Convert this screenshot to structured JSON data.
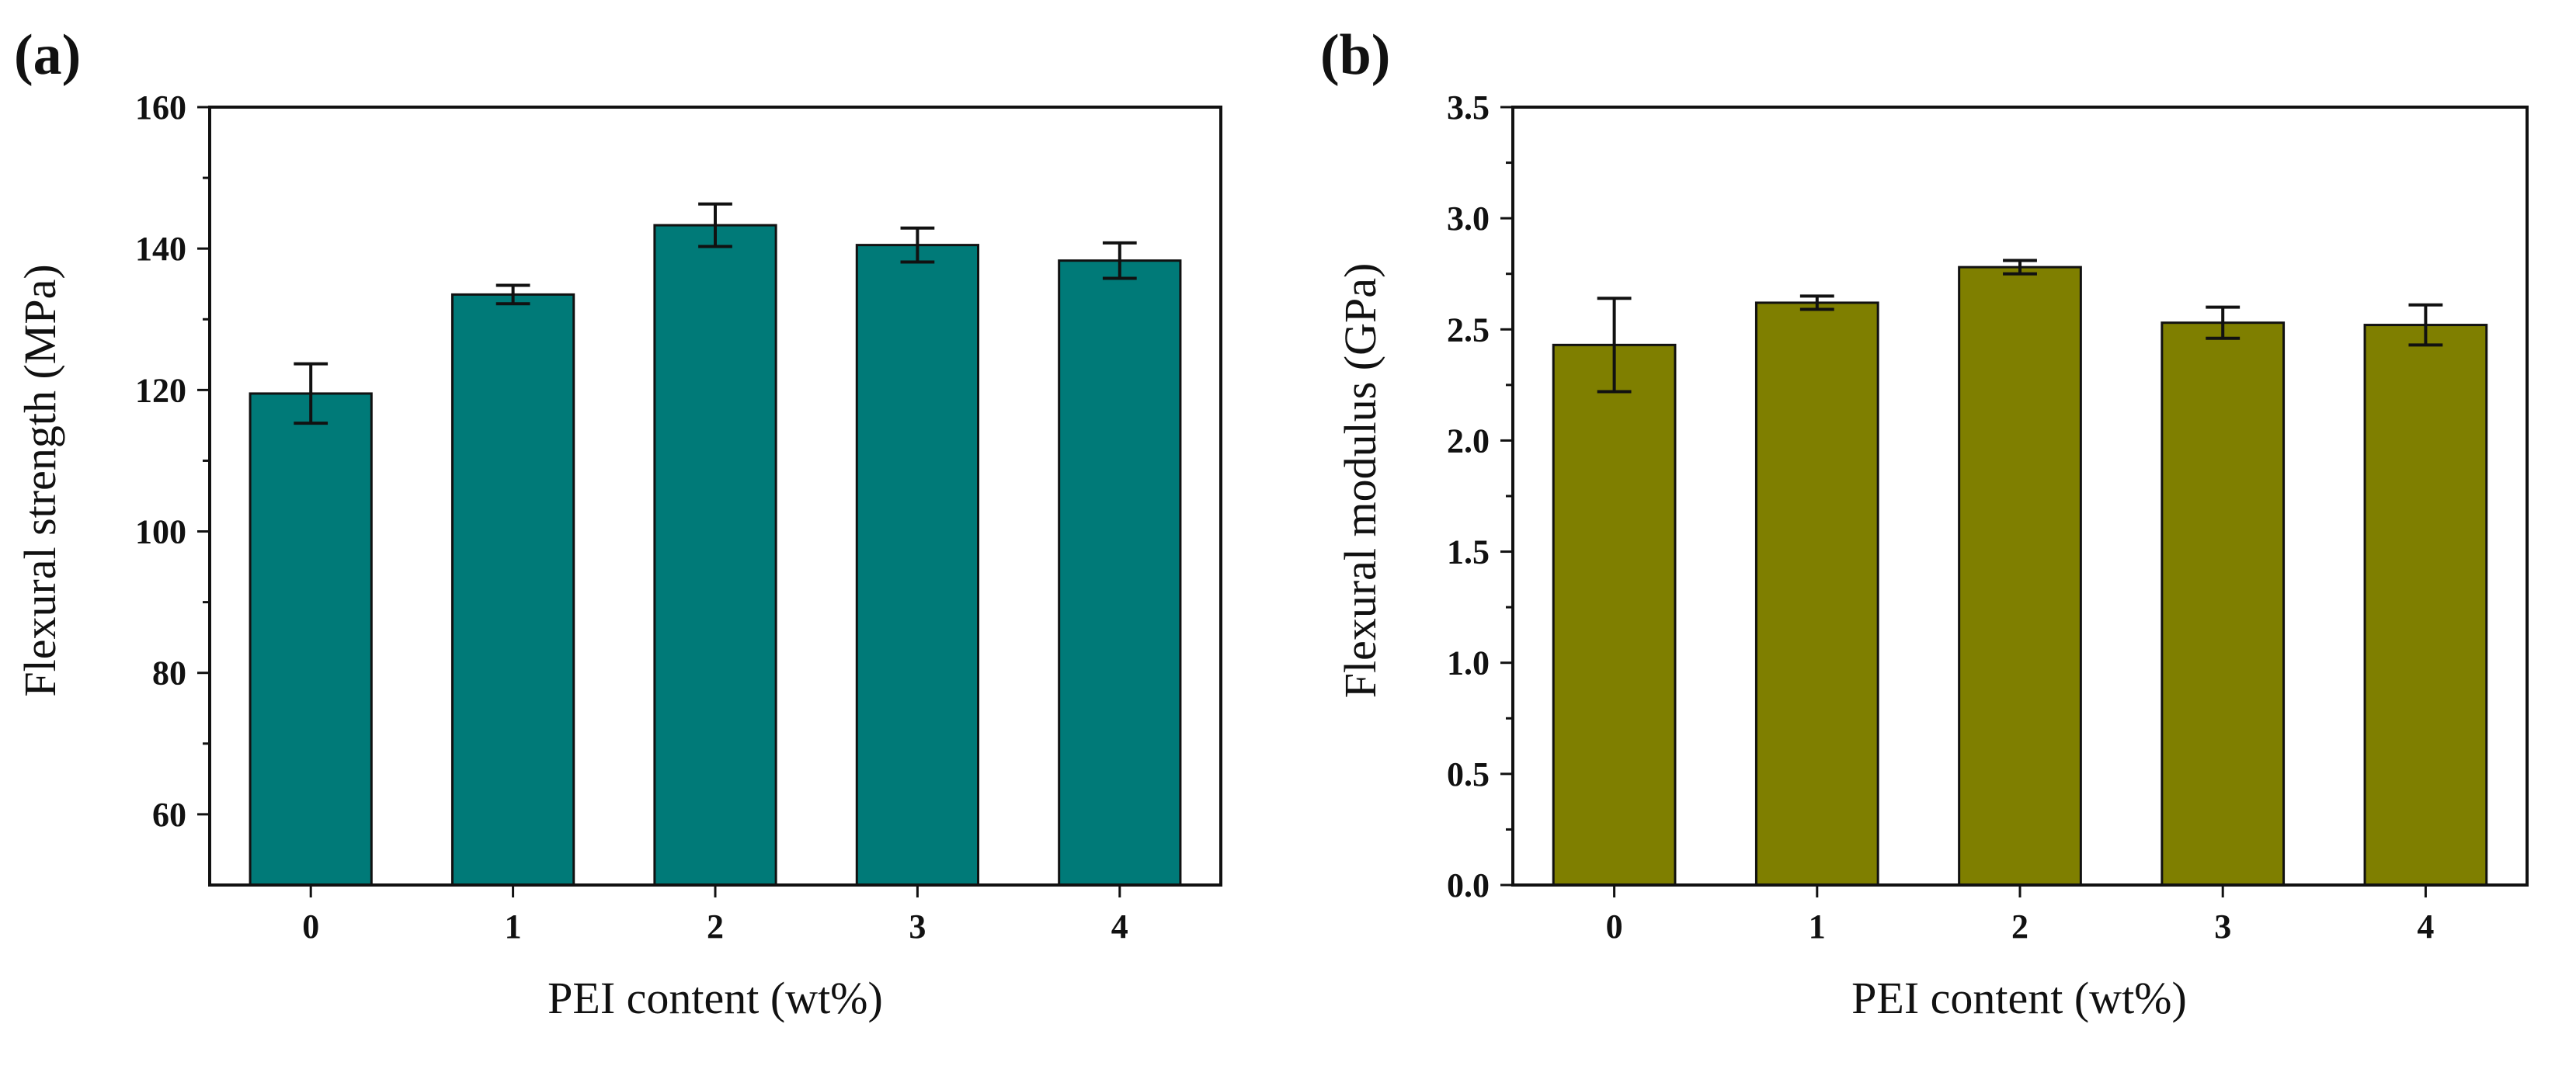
{
  "chart_data": [
    {
      "panel_label": "(a)",
      "type": "bar",
      "categories": [
        "0",
        "1",
        "2",
        "3",
        "4"
      ],
      "values": [
        119.5,
        133.5,
        143.3,
        140.5,
        138.3
      ],
      "errors": [
        4.2,
        1.3,
        3.0,
        2.4,
        2.5
      ],
      "xlabel": "PEI content (wt%)",
      "ylabel": "Flexural strength (MPa)",
      "ylim": [
        50,
        160
      ],
      "yticks": [
        "60",
        "80",
        "100",
        "120",
        "140",
        "160"
      ],
      "bar_color": "#007a78",
      "grid": false
    },
    {
      "panel_label": "(b)",
      "type": "bar",
      "categories": [
        "0",
        "1",
        "2",
        "3",
        "4"
      ],
      "values": [
        2.43,
        2.62,
        2.78,
        2.53,
        2.52
      ],
      "errors": [
        0.21,
        0.03,
        0.03,
        0.07,
        0.09
      ],
      "xlabel": "PEI content (wt%)",
      "ylabel": "Flexural modulus (GPa)",
      "ylim": [
        0,
        3.5
      ],
      "yticks": [
        "0.0",
        "0.5",
        "1.0",
        "1.5",
        "2.0",
        "2.5",
        "3.0",
        "3.5"
      ],
      "bar_color": "#7f7f00",
      "grid": false
    }
  ]
}
